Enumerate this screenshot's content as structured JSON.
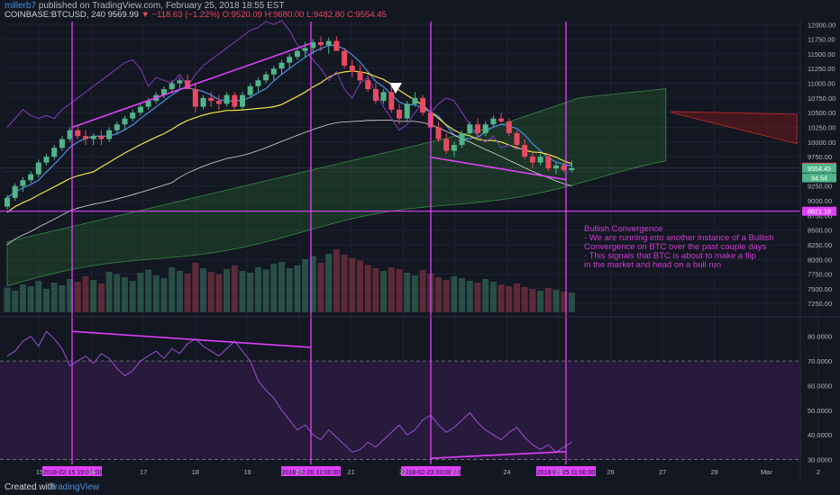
{
  "header": {
    "user": "millerb7",
    "published_text": "published on TradingView.com, February 25, 2018 18:55 EST",
    "symbol": "COINBASE:BTCUSD, 240",
    "last": "9569.99",
    "change": "−118.63 (−1.22%)",
    "ohlc": "O:9520.09 H:9680.00 L:9482.80 C:9554.45"
  },
  "footer": {
    "created_with": "Created with",
    "brand": "TradingView"
  },
  "annotation": {
    "title": "Bullish Convergence",
    "lines": [
      "- We are running into another instance of a Bullish",
      "Convergence on BTC over the past couple days",
      "- This signals that BTC is about to make a flip",
      "in the market and head on a bull run"
    ]
  },
  "colors": {
    "background": "#131722",
    "candle_up": "#4fb58a",
    "candle_down": "#e84a5f",
    "trendline": "#e040fb",
    "kumo_bull": "#2e7d32",
    "kumo_bear": "#8b1a1a",
    "tenkan": "#4a90e2",
    "kijun": "#f5e642",
    "rsi_band": "#2a1b3d"
  },
  "chart_data": [
    {
      "type": "candlestick",
      "title": "",
      "price_axis_ticks": [
        "12000.00",
        "11750.00",
        "11500.00",
        "11250.00",
        "11000.00",
        "10750.00",
        "10500.00",
        "10250.00",
        "10000.00",
        "9750.00",
        "9500.00",
        "9250.00",
        "9000.00",
        "8750.00",
        "8500.00",
        "8250.00",
        "8000.00",
        "7750.00",
        "7500.00",
        "7250.00"
      ],
      "price_labels": [
        "9569.99",
        "9554.45",
        "94.54",
        "8821.18"
      ],
      "ylim": [
        7100,
        12050
      ],
      "x_ticks": [
        "15",
        "16",
        "17",
        "18",
        "19",
        "20",
        "21",
        "22",
        "23",
        "24",
        "25",
        "26",
        "27",
        "28",
        "Mar",
        "2"
      ],
      "x_highlight_labels": [
        "2018-02-15 19:00:00",
        "2018-02-20 11:00:00",
        "2018-02-23 03:00:00",
        "2018-02-25 11:00:00"
      ],
      "series": [
        {
          "name": "candles",
          "values": [
            [
              8900,
              9100,
              8850,
              9050
            ],
            [
              9050,
              9300,
              9000,
              9250
            ],
            [
              9250,
              9400,
              9150,
              9350
            ],
            [
              9350,
              9500,
              9300,
              9450
            ],
            [
              9450,
              9700,
              9400,
              9650
            ],
            [
              9650,
              9800,
              9600,
              9750
            ],
            [
              9750,
              9950,
              9700,
              9900
            ],
            [
              9900,
              10100,
              9850,
              10050
            ],
            [
              10050,
              10250,
              10000,
              10200
            ],
            [
              10200,
              10300,
              10050,
              10100
            ],
            [
              10100,
              10200,
              9950,
              10050
            ],
            [
              10050,
              10150,
              9950,
              10100
            ],
            [
              10100,
              10200,
              9950,
              10050
            ],
            [
              10050,
              10250,
              10000,
              10200
            ],
            [
              10200,
              10350,
              10150,
              10300
            ],
            [
              10300,
              10450,
              10200,
              10400
            ],
            [
              10400,
              10550,
              10350,
              10500
            ],
            [
              10500,
              10650,
              10450,
              10600
            ],
            [
              10600,
              10750,
              10550,
              10700
            ],
            [
              10700,
              10850,
              10650,
              10800
            ],
            [
              10800,
              10950,
              10750,
              10900
            ],
            [
              10900,
              11050,
              10850,
              11000
            ],
            [
              11000,
              11100,
              10900,
              11050
            ],
            [
              11050,
              11150,
              10950,
              10900
            ],
            [
              10900,
              11000,
              10500,
              10600
            ],
            [
              10600,
              10800,
              10550,
              10750
            ],
            [
              10750,
              10850,
              10600,
              10700
            ],
            [
              10700,
              10800,
              10550,
              10650
            ],
            [
              10650,
              10850,
              10600,
              10800
            ],
            [
              10800,
              10850,
              10550,
              10600
            ],
            [
              10600,
              10850,
              10550,
              10800
            ],
            [
              10800,
              11000,
              10750,
              10950
            ],
            [
              10950,
              11100,
              10850,
              11050
            ],
            [
              11050,
              11200,
              11000,
              11150
            ],
            [
              11150,
              11300,
              11050,
              11250
            ],
            [
              11250,
              11400,
              11150,
              11350
            ],
            [
              11350,
              11500,
              11250,
              11450
            ],
            [
              11450,
              11600,
              11400,
              11550
            ],
            [
              11550,
              11700,
              11450,
              11600
            ],
            [
              11600,
              11750,
              11500,
              11700
            ],
            [
              11700,
              11800,
              11550,
              11650
            ],
            [
              11650,
              11780,
              11500,
              11720
            ],
            [
              11720,
              11800,
              11600,
              11550
            ],
            [
              11550,
              11600,
              11250,
              11300
            ],
            [
              11300,
              11400,
              11100,
              11200
            ],
            [
              11200,
              11300,
              11000,
              11050
            ],
            [
              11050,
              11150,
              10850,
              10900
            ],
            [
              10900,
              11000,
              10650,
              10700
            ],
            [
              10700,
              10900,
              10650,
              10850
            ],
            [
              10850,
              10950,
              10500,
              10550
            ],
            [
              10550,
              10650,
              10300,
              10400
            ],
            [
              10400,
              10700,
              10350,
              10650
            ],
            [
              10650,
              10850,
              10600,
              10750
            ],
            [
              10750,
              10800,
              10450,
              10500
            ],
            [
              10500,
              10600,
              10200,
              10250
            ],
            [
              10250,
              10350,
              10000,
              10050
            ],
            [
              10050,
              10150,
              9800,
              9850
            ],
            [
              9850,
              10000,
              9750,
              9950
            ],
            [
              9950,
              10200,
              9900,
              10150
            ],
            [
              10150,
              10350,
              10100,
              10300
            ],
            [
              10300,
              10400,
              10100,
              10150
            ],
            [
              10150,
              10350,
              10100,
              10300
            ],
            [
              10300,
              10450,
              10250,
              10400
            ],
            [
              10400,
              10500,
              10300,
              10350
            ],
            [
              10350,
              10400,
              10100,
              10150
            ],
            [
              10150,
              10200,
              9900,
              9950
            ],
            [
              9950,
              10050,
              9700,
              9750
            ],
            [
              9750,
              9850,
              9550,
              9650
            ],
            [
              9650,
              9800,
              9600,
              9750
            ],
            [
              9750,
              9800,
              9500,
              9550
            ],
            [
              9550,
              9650,
              9450,
              9600
            ],
            [
              9600,
              9700,
              9480,
              9520
            ],
            [
              9520,
              9680,
              9480,
              9554
            ]
          ]
        },
        {
          "name": "volume",
          "values": [
            55,
            48,
            62,
            58,
            70,
            52,
            66,
            60,
            74,
            68,
            80,
            72,
            64,
            90,
            85,
            78,
            70,
            88,
            95,
            82,
            76,
            100,
            92,
            86,
            110,
            98,
            90,
            84,
            96,
            104,
            92,
            88,
            100,
            95,
            108,
            112,
            98,
            104,
            118,
            125,
            110,
            130,
            140,
            128,
            120,
            115,
            105,
            98,
            92,
            100,
            96,
            88,
            82,
            94,
            86,
            78,
            72,
            80,
            76,
            70,
            66,
            74,
            68,
            62,
            58,
            64,
            56,
            52,
            48,
            54,
            50,
            46,
            44
          ]
        },
        {
          "name": "rsi",
          "values": [
            72,
            74,
            78,
            80,
            76,
            82,
            79,
            75,
            68,
            70,
            72,
            69,
            73,
            71,
            67,
            64,
            66,
            70,
            72,
            74,
            71,
            75,
            73,
            77,
            79,
            76,
            74,
            72,
            75,
            78,
            74,
            70,
            62,
            58,
            55,
            50,
            46,
            42,
            44,
            40,
            38,
            42,
            39,
            36,
            33,
            34,
            37,
            35,
            38,
            41,
            44,
            40,
            42,
            46,
            48,
            44,
            41,
            43,
            46,
            49,
            45,
            42,
            40,
            38,
            41,
            43,
            39,
            36,
            34,
            36,
            33,
            35,
            37
          ]
        }
      ],
      "rsi_axis_ticks": [
        "80.0000",
        "70.0000",
        "60.0000",
        "50.0000",
        "40.0000",
        "30.0000"
      ],
      "rsi_band": [
        30,
        70
      ],
      "rsi_ylim": [
        28,
        85
      ]
    }
  ]
}
